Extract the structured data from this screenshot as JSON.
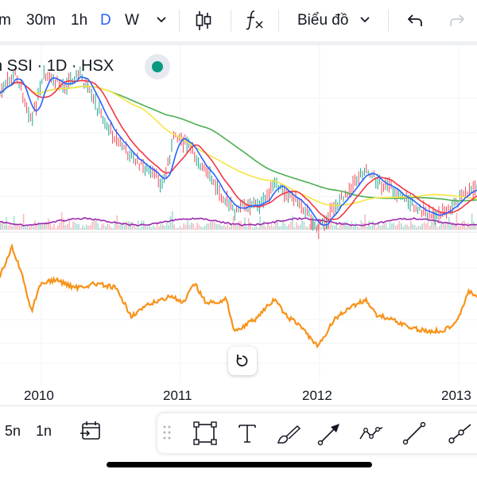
{
  "toolbar": {
    "intervals": [
      {
        "label": "m",
        "active": false
      },
      {
        "label": "30m",
        "active": false
      },
      {
        "label": "1h",
        "active": false
      },
      {
        "label": "D",
        "active": true
      },
      {
        "label": "W",
        "active": false
      }
    ],
    "chart_type_label": "Biểu đồ"
  },
  "legend": {
    "title": "n SSI · 1D · HSX",
    "status_color": "#089981"
  },
  "time_axis": {
    "labels": [
      "2010",
      "2011",
      "2012",
      "2013"
    ]
  },
  "range_buttons": [
    "5n",
    "1n"
  ],
  "colors": {
    "ma_blue": "#2962ff",
    "ma_red": "#f23645",
    "ma_yellow": "#f5e642",
    "ma_green": "#4caf50",
    "volume_ma": "#9c27b0",
    "indicator": "#f7931a"
  },
  "icons": {
    "undo": "undo-icon",
    "redo": "redo-icon",
    "reset": "reset-icon"
  }
}
